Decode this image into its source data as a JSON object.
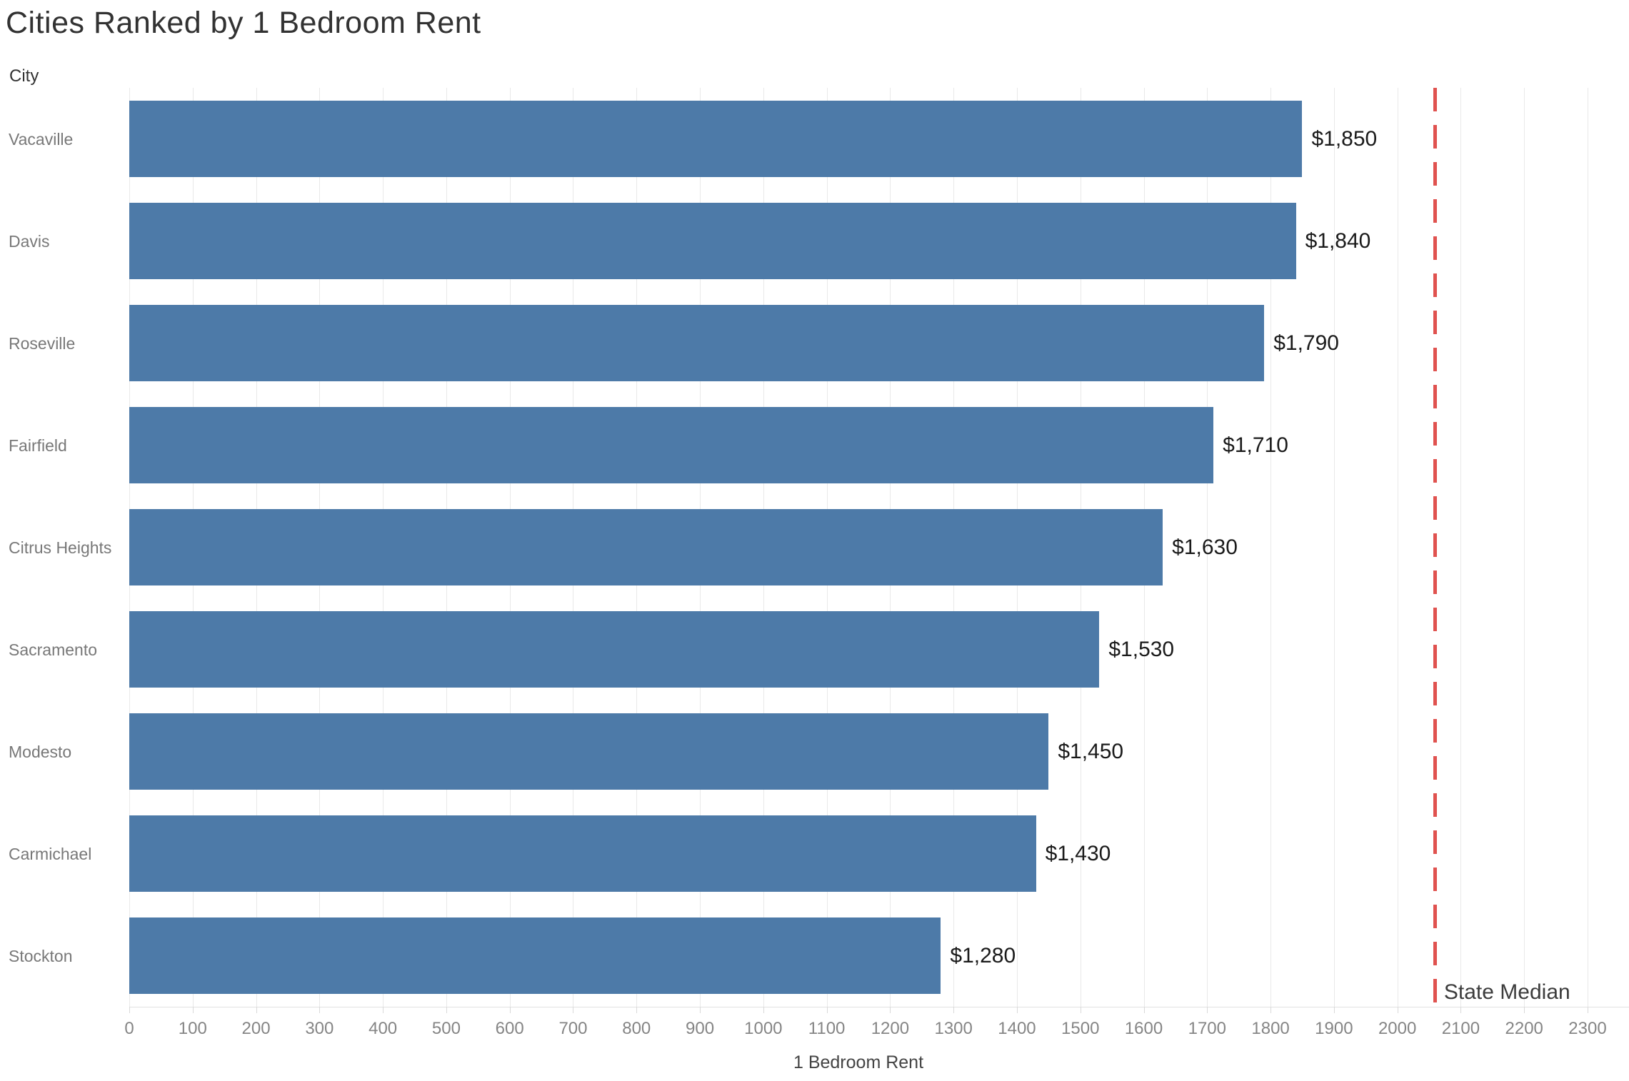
{
  "title": "Cities Ranked by 1 Bedroom Rent",
  "row_axis_label": "City",
  "chart_data": {
    "type": "bar",
    "orientation": "horizontal",
    "title": "Cities Ranked by 1 Bedroom Rent",
    "xlabel": "1 Bedroom Rent",
    "ylabel": "City",
    "categories": [
      "Vacaville",
      "Davis",
      "Roseville",
      "Fairfield",
      "Citrus Heights",
      "Sacramento",
      "Modesto",
      "Carmichael",
      "Stockton"
    ],
    "values": [
      1850,
      1840,
      1790,
      1710,
      1630,
      1530,
      1450,
      1430,
      1280
    ],
    "value_labels": [
      "$1,850",
      "$1,840",
      "$1,790",
      "$1,710",
      "$1,630",
      "$1,530",
      "$1,450",
      "$1,430",
      "$1,280"
    ],
    "xlim": [
      0,
      2300
    ],
    "x_ticks": [
      0,
      100,
      200,
      300,
      400,
      500,
      600,
      700,
      800,
      900,
      1000,
      1100,
      1200,
      1300,
      1400,
      1500,
      1600,
      1700,
      1800,
      1900,
      2000,
      2100,
      2200,
      2300
    ],
    "grid": true,
    "legend": "none",
    "bar_color": "#4d7aa8",
    "reference_line": {
      "value": 2060,
      "label": "State Median",
      "color": "#e0524f",
      "style": "dashed"
    }
  }
}
